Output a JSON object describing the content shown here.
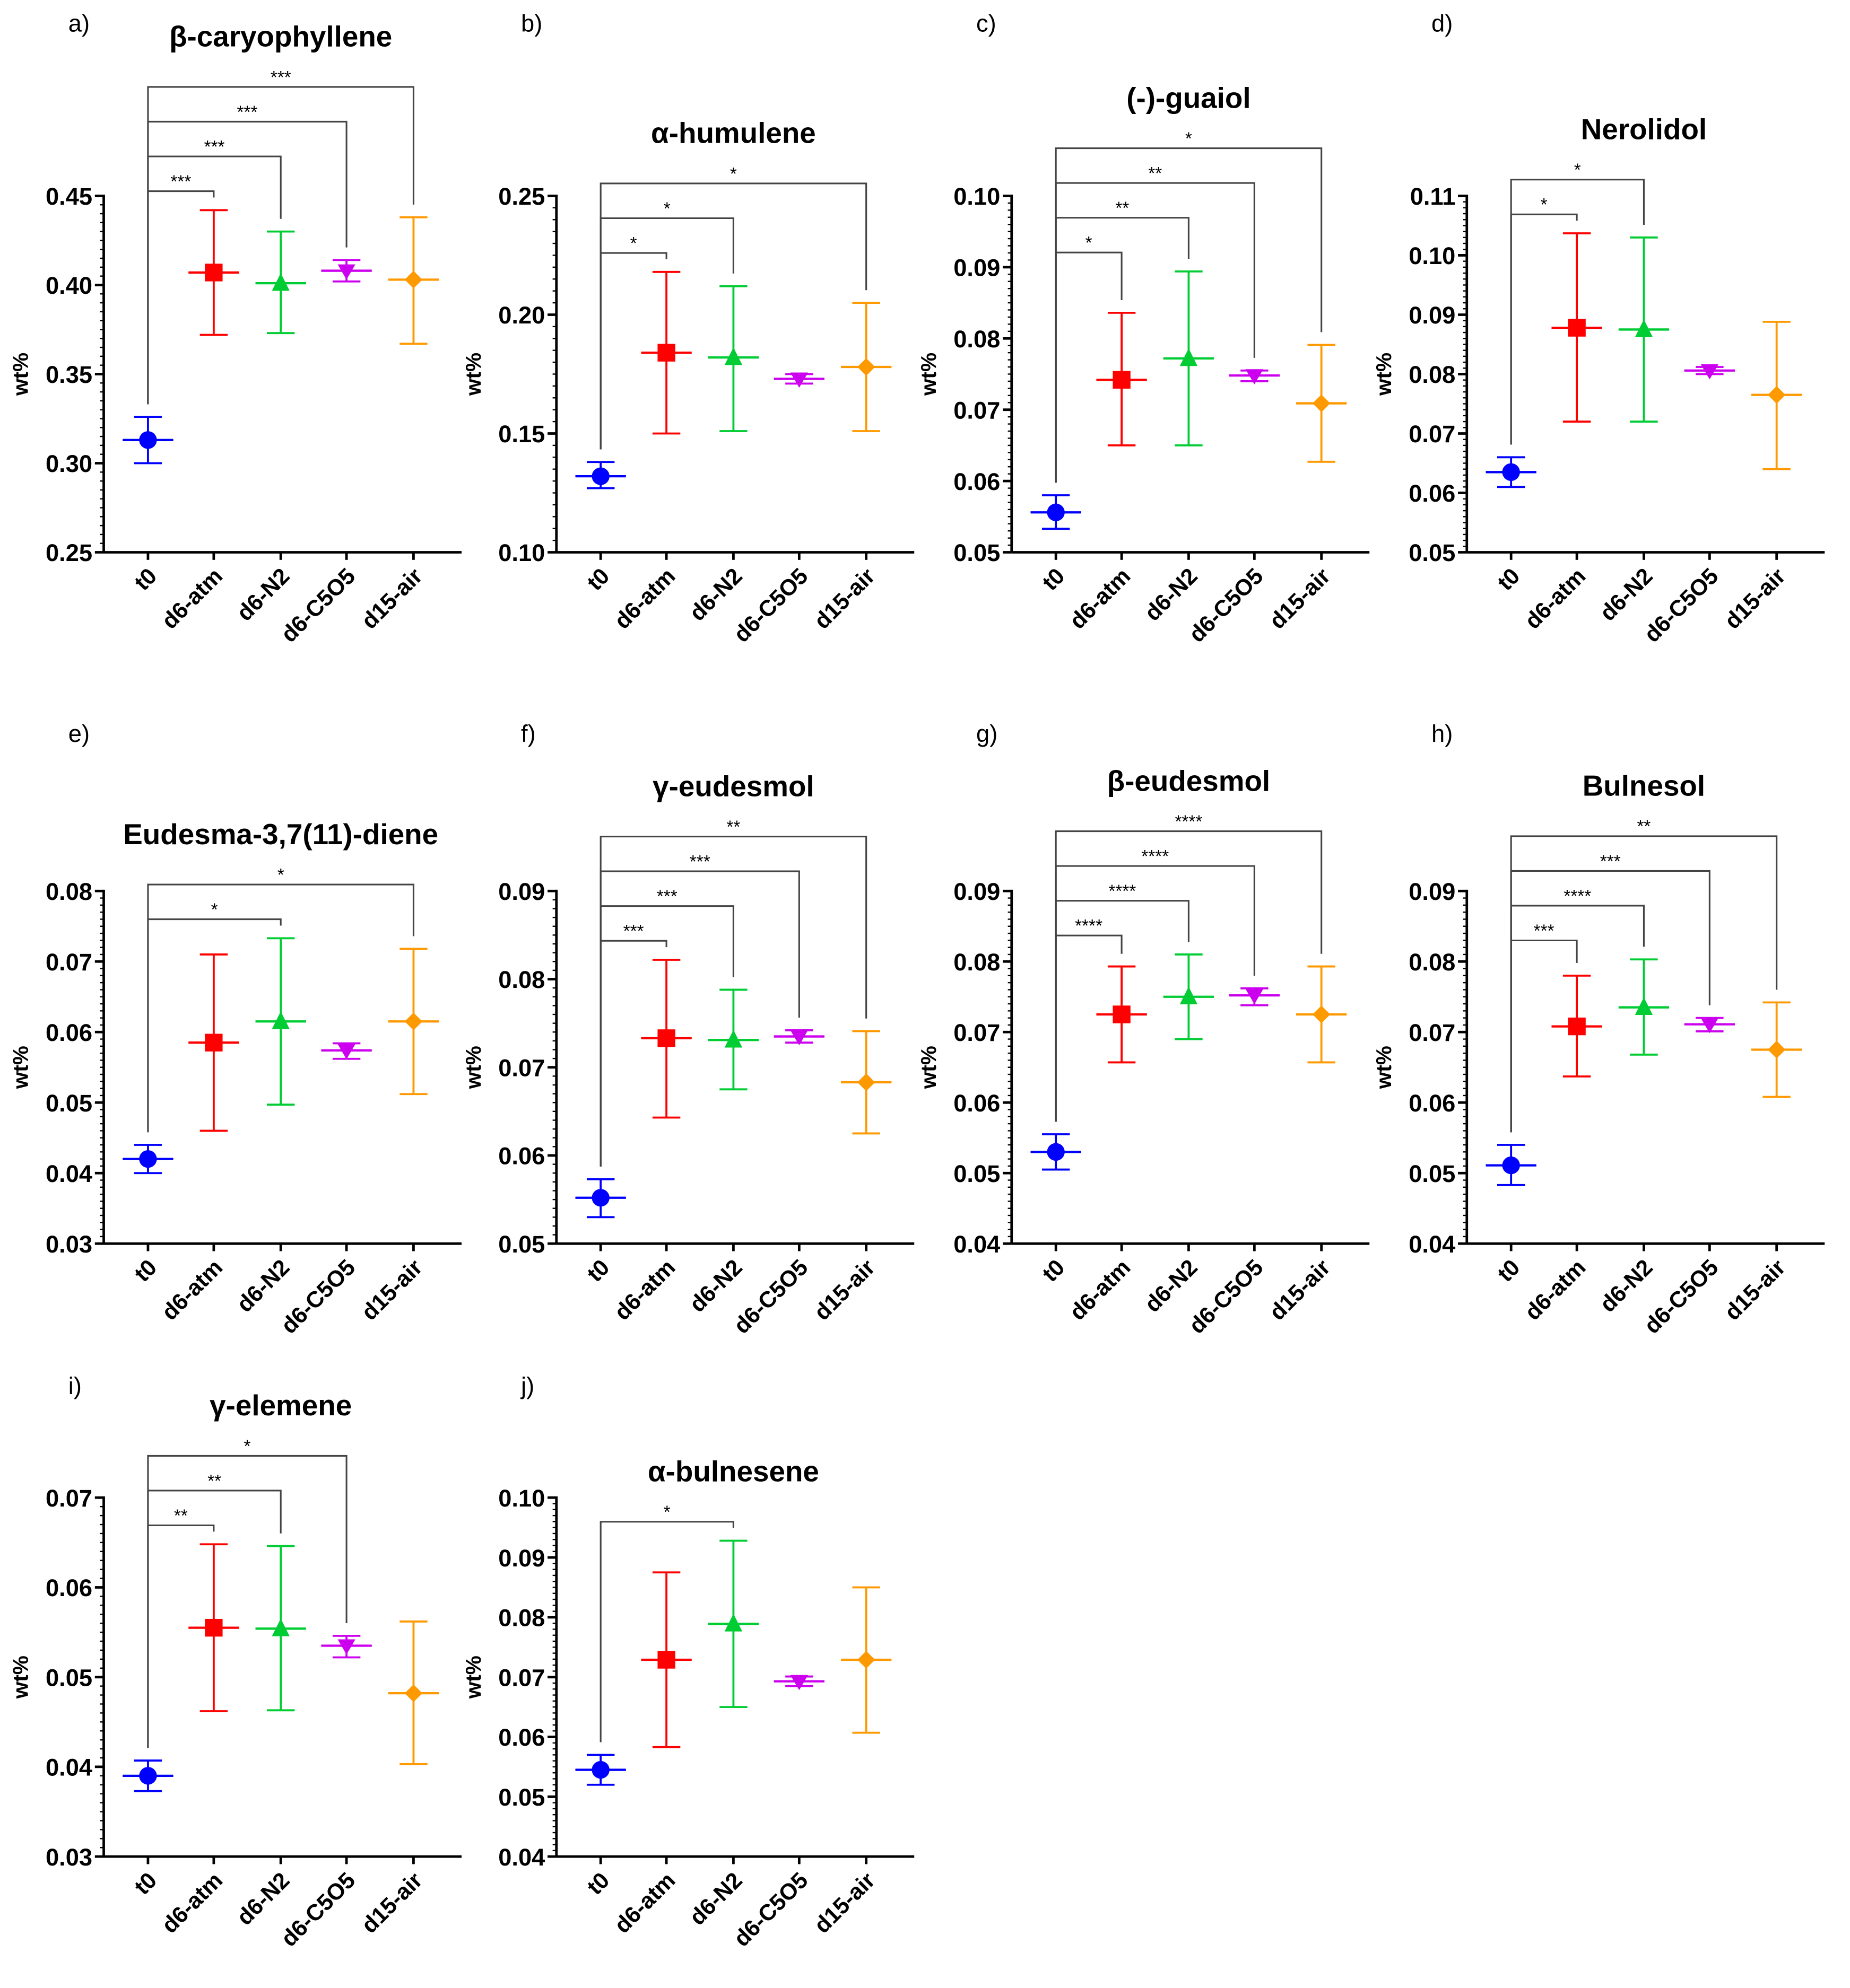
{
  "chart_data": {
    "type": "scatter",
    "categories": [
      "t0",
      "d6-atm",
      "d6-N2",
      "d6-C5O5",
      "d15-air"
    ],
    "ylabel": "wt%",
    "colors": {
      "t0": "#0000FF",
      "d6-atm": "#FF0000",
      "d6-N2": "#00CC33",
      "d6-C5O5": "#CC00EE",
      "d15-air": "#FF9900"
    },
    "markers": [
      "circle",
      "square",
      "triangle-up",
      "triangle-down",
      "diamond"
    ],
    "panels": [
      {
        "letter": "a)",
        "title": "β-caryophyllene",
        "ylim": [
          0.25,
          0.45
        ],
        "yticks": [
          "0.25",
          "0.30",
          "0.35",
          "0.40",
          "0.45"
        ],
        "mean": [
          0.313,
          0.407,
          0.401,
          0.408,
          0.403
        ],
        "low": [
          0.3,
          0.372,
          0.373,
          0.402,
          0.367
        ],
        "high": [
          0.326,
          0.442,
          0.43,
          0.414,
          0.438
        ],
        "significance": [
          {
            "vs": "d6-atm",
            "label": "***"
          },
          {
            "vs": "d6-N2",
            "label": "***"
          },
          {
            "vs": "d6-C5O5",
            "label": "***"
          },
          {
            "vs": "d15-air",
            "label": "***"
          }
        ]
      },
      {
        "letter": "b)",
        "title": "α-humulene",
        "ylim": [
          0.1,
          0.25
        ],
        "yticks": [
          "0.10",
          "0.15",
          "0.20",
          "0.25"
        ],
        "mean": [
          0.132,
          0.184,
          0.182,
          0.173,
          0.178
        ],
        "low": [
          0.127,
          0.15,
          0.151,
          0.171,
          0.151
        ],
        "high": [
          0.138,
          0.218,
          0.212,
          0.175,
          0.205
        ],
        "significance": [
          {
            "vs": "d6-atm",
            "label": "*"
          },
          {
            "vs": "d6-N2",
            "label": "*"
          },
          {
            "vs": "d15-air",
            "label": "*"
          }
        ]
      },
      {
        "letter": "c)",
        "title": "(-)-guaiol",
        "ylim": [
          0.05,
          0.1
        ],
        "yticks": [
          "0.05",
          "0.06",
          "0.07",
          "0.08",
          "0.09",
          "0.10"
        ],
        "mean": [
          0.0556,
          0.0742,
          0.0772,
          0.0748,
          0.0709
        ],
        "low": [
          0.0533,
          0.065,
          0.065,
          0.074,
          0.0627
        ],
        "high": [
          0.058,
          0.0836,
          0.0894,
          0.0755,
          0.0791
        ],
        "significance": [
          {
            "vs": "d6-atm",
            "label": "*"
          },
          {
            "vs": "d6-N2",
            "label": "**"
          },
          {
            "vs": "d6-C5O5",
            "label": "**"
          },
          {
            "vs": "d15-air",
            "label": "*"
          }
        ]
      },
      {
        "letter": "d)",
        "title": "Nerolidol",
        "ylim": [
          0.05,
          0.11
        ],
        "yticks": [
          "0.05",
          "0.06",
          "0.07",
          "0.08",
          "0.09",
          "0.10",
          "0.11"
        ],
        "mean": [
          0.0635,
          0.0878,
          0.0875,
          0.0806,
          0.0765
        ],
        "low": [
          0.061,
          0.072,
          0.072,
          0.08,
          0.064
        ],
        "high": [
          0.066,
          0.1037,
          0.103,
          0.0812,
          0.0888
        ],
        "significance": [
          {
            "vs": "d6-atm",
            "label": "*"
          },
          {
            "vs": "d6-N2",
            "label": "*"
          }
        ]
      },
      {
        "letter": "e)",
        "title": "Eudesma-3,7(11)-diene",
        "ylim": [
          0.03,
          0.08
        ],
        "yticks": [
          "0.03",
          "0.04",
          "0.05",
          "0.06",
          "0.07",
          "0.08"
        ],
        "mean": [
          0.042,
          0.0585,
          0.0615,
          0.0574,
          0.0615
        ],
        "low": [
          0.04,
          0.046,
          0.0497,
          0.0562,
          0.0512
        ],
        "high": [
          0.044,
          0.071,
          0.0733,
          0.0584,
          0.0718
        ],
        "significance": [
          {
            "vs": "d6-N2",
            "label": "*"
          },
          {
            "vs": "d15-air",
            "label": "*"
          }
        ]
      },
      {
        "letter": "f)",
        "title": "γ-eudesmol",
        "ylim": [
          0.05,
          0.09
        ],
        "yticks": [
          "0.05",
          "0.06",
          "0.07",
          "0.08",
          "0.09"
        ],
        "mean": [
          0.0552,
          0.0733,
          0.0731,
          0.0735,
          0.0683
        ],
        "low": [
          0.053,
          0.0643,
          0.0675,
          0.0728,
          0.0625
        ],
        "high": [
          0.0573,
          0.0822,
          0.0788,
          0.0742,
          0.0741
        ],
        "significance": [
          {
            "vs": "d6-atm",
            "label": "***"
          },
          {
            "vs": "d6-N2",
            "label": "***"
          },
          {
            "vs": "d6-C5O5",
            "label": "***"
          },
          {
            "vs": "d15-air",
            "label": "**"
          }
        ]
      },
      {
        "letter": "g)",
        "title": "β-eudesmol",
        "ylim": [
          0.04,
          0.09
        ],
        "yticks": [
          "0.04",
          "0.05",
          "0.06",
          "0.07",
          "0.08",
          "0.09"
        ],
        "mean": [
          0.053,
          0.0725,
          0.075,
          0.0752,
          0.0725
        ],
        "low": [
          0.0505,
          0.0657,
          0.069,
          0.0738,
          0.0657
        ],
        "high": [
          0.0555,
          0.0793,
          0.081,
          0.0762,
          0.0793
        ],
        "significance": [
          {
            "vs": "d6-atm",
            "label": "****"
          },
          {
            "vs": "d6-N2",
            "label": "****"
          },
          {
            "vs": "d6-C5O5",
            "label": "****"
          },
          {
            "vs": "d15-air",
            "label": "****"
          }
        ]
      },
      {
        "letter": "h)",
        "title": "Bulnesol",
        "ylim": [
          0.04,
          0.09
        ],
        "yticks": [
          "0.04",
          "0.05",
          "0.06",
          "0.07",
          "0.08",
          "0.09"
        ],
        "mean": [
          0.0511,
          0.0708,
          0.0735,
          0.0711,
          0.0675
        ],
        "low": [
          0.0483,
          0.0637,
          0.0668,
          0.0701,
          0.0608
        ],
        "high": [
          0.054,
          0.078,
          0.0803,
          0.072,
          0.0742
        ],
        "significance": [
          {
            "vs": "d6-atm",
            "label": "***"
          },
          {
            "vs": "d6-N2",
            "label": "****"
          },
          {
            "vs": "d6-C5O5",
            "label": "***"
          },
          {
            "vs": "d15-air",
            "label": "**"
          }
        ]
      },
      {
        "letter": "i)",
        "title": "γ-elemene",
        "ylim": [
          0.03,
          0.07
        ],
        "yticks": [
          "0.03",
          "0.04",
          "0.05",
          "0.06",
          "0.07"
        ],
        "mean": [
          0.039,
          0.0555,
          0.0554,
          0.0535,
          0.0482
        ],
        "low": [
          0.0373,
          0.0462,
          0.0463,
          0.0522,
          0.0403
        ],
        "high": [
          0.0407,
          0.0648,
          0.0646,
          0.0546,
          0.0562
        ],
        "significance": [
          {
            "vs": "d6-atm",
            "label": "**"
          },
          {
            "vs": "d6-N2",
            "label": "**"
          },
          {
            "vs": "d6-C5O5",
            "label": "*"
          }
        ]
      },
      {
        "letter": "j)",
        "title": "α-bulnesene",
        "ylim": [
          0.04,
          0.1
        ],
        "yticks": [
          "0.04",
          "0.05",
          "0.06",
          "0.07",
          "0.08",
          "0.09",
          "0.10"
        ],
        "mean": [
          0.0545,
          0.0729,
          0.0789,
          0.0693,
          0.0729
        ],
        "low": [
          0.052,
          0.0583,
          0.065,
          0.0685,
          0.0607
        ],
        "high": [
          0.057,
          0.0875,
          0.0928,
          0.0701,
          0.085
        ],
        "significance": [
          {
            "vs": "d6-N2",
            "label": "*"
          }
        ]
      }
    ]
  }
}
